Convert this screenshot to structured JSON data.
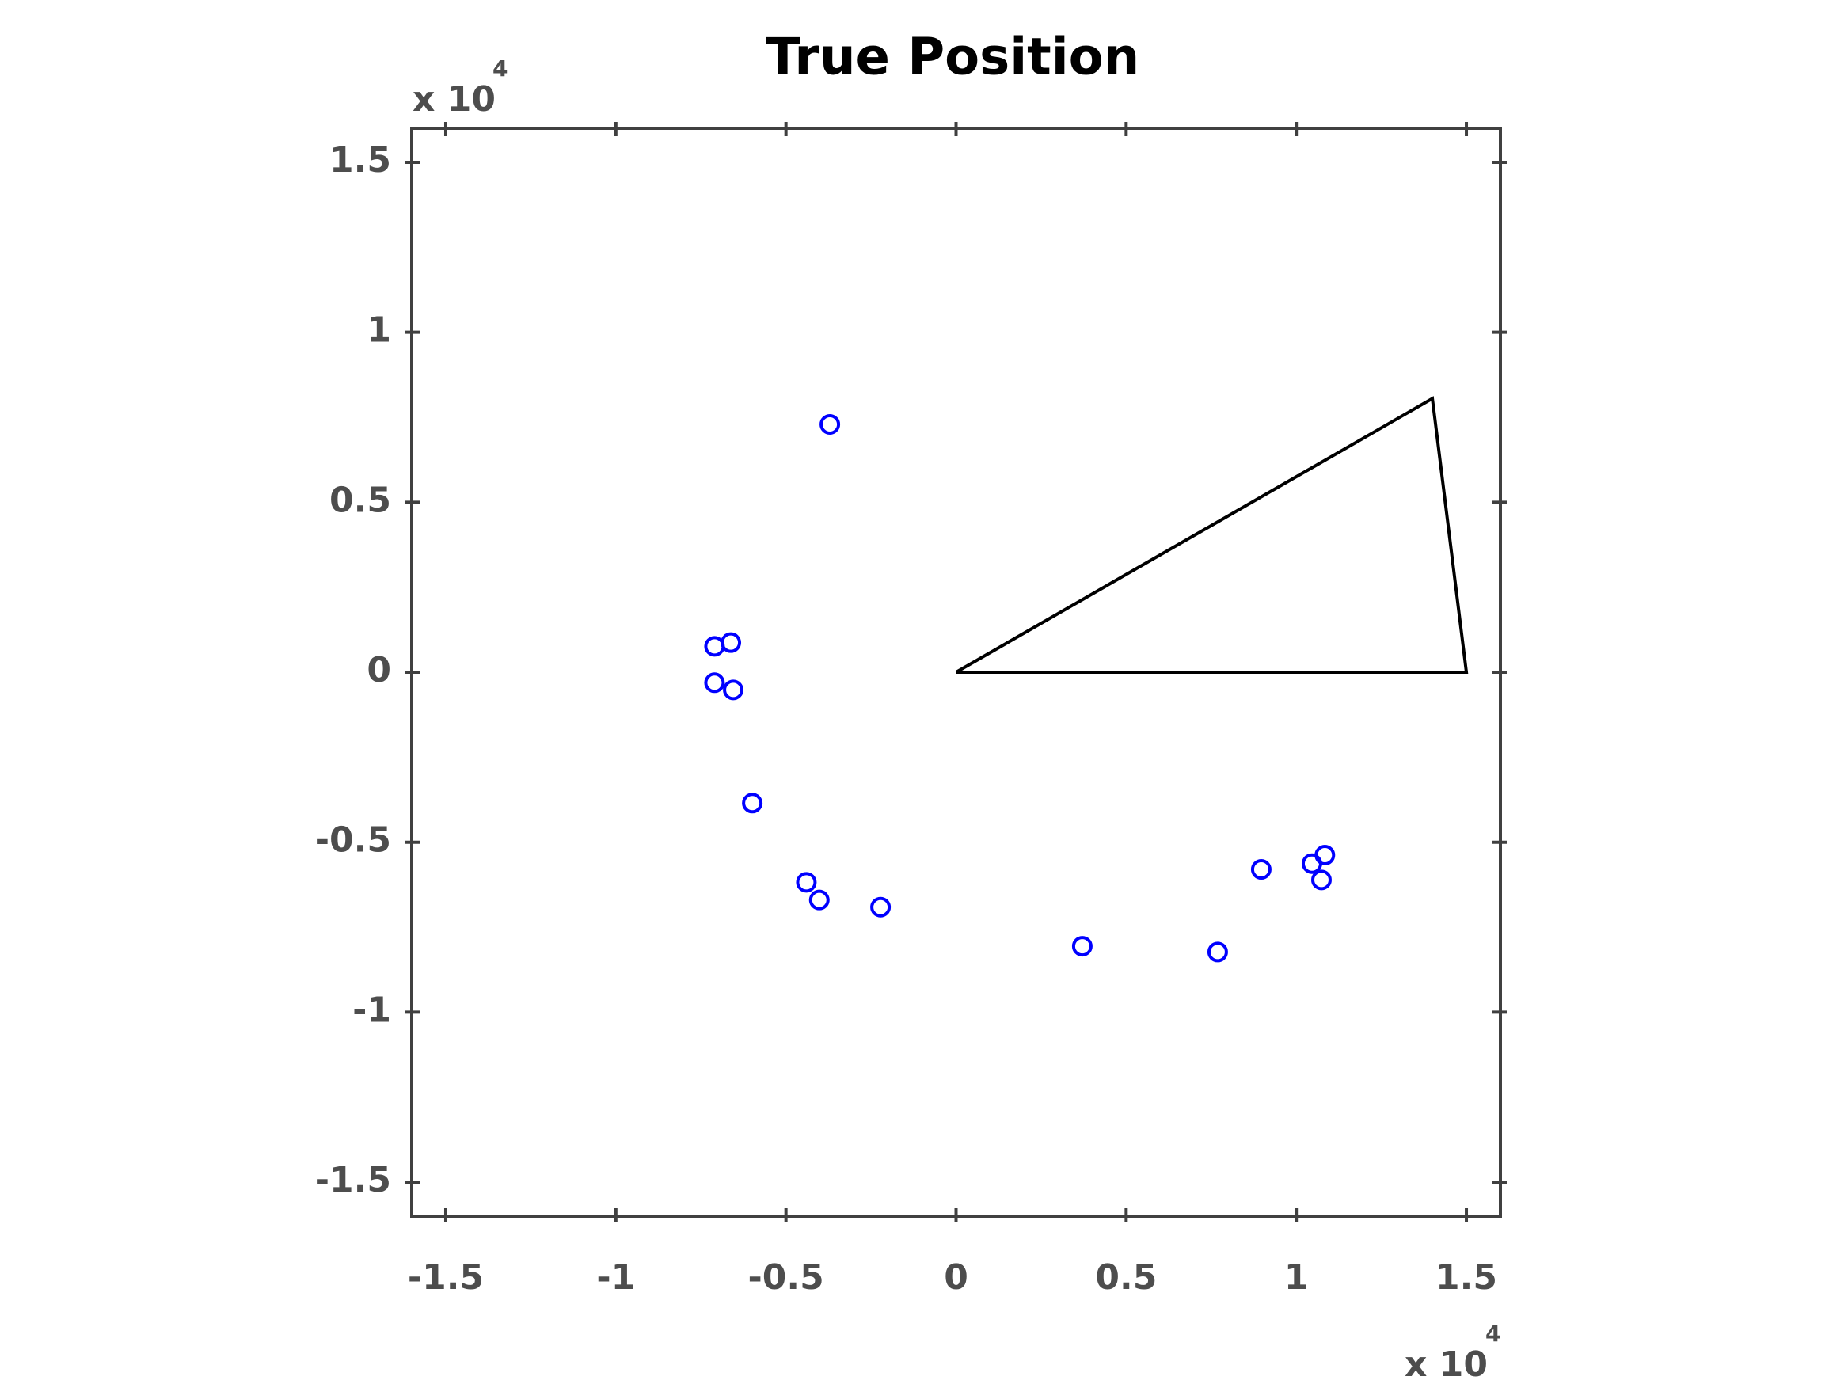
{
  "chart_data": {
    "type": "scatter",
    "title": "True Position",
    "xlim": [
      -1.6,
      1.6
    ],
    "ylim": [
      -1.6,
      1.6
    ],
    "xticks": [
      -1.5,
      -1,
      -0.5,
      0,
      0.5,
      1,
      1.5
    ],
    "yticks": [
      -1.5,
      -1,
      -0.5,
      0,
      0.5,
      1,
      1.5
    ],
    "x_multiplier": "x 10",
    "x_exponent": 4,
    "y_multiplier": "x 10",
    "y_exponent": 4,
    "series": [
      {
        "color": "#0000ff",
        "style": "markers",
        "x": [
          -0.371,
          -0.71,
          -0.662,
          -0.71,
          -0.655,
          -0.599,
          -0.44,
          -0.402,
          -0.222,
          0.371,
          0.769,
          0.897,
          1.046,
          1.084,
          1.074
        ],
        "y": [
          0.729,
          0.076,
          0.087,
          -0.031,
          -0.052,
          -0.385,
          -0.618,
          -0.67,
          -0.691,
          -0.806,
          -0.823,
          -0.58,
          -0.563,
          -0.538,
          -0.611
        ]
      },
      {
        "color": "#000000",
        "style": "line",
        "x": [
          0,
          1.4,
          1.5,
          0
        ],
        "y": [
          0,
          0.805,
          0,
          0
        ]
      }
    ]
  }
}
